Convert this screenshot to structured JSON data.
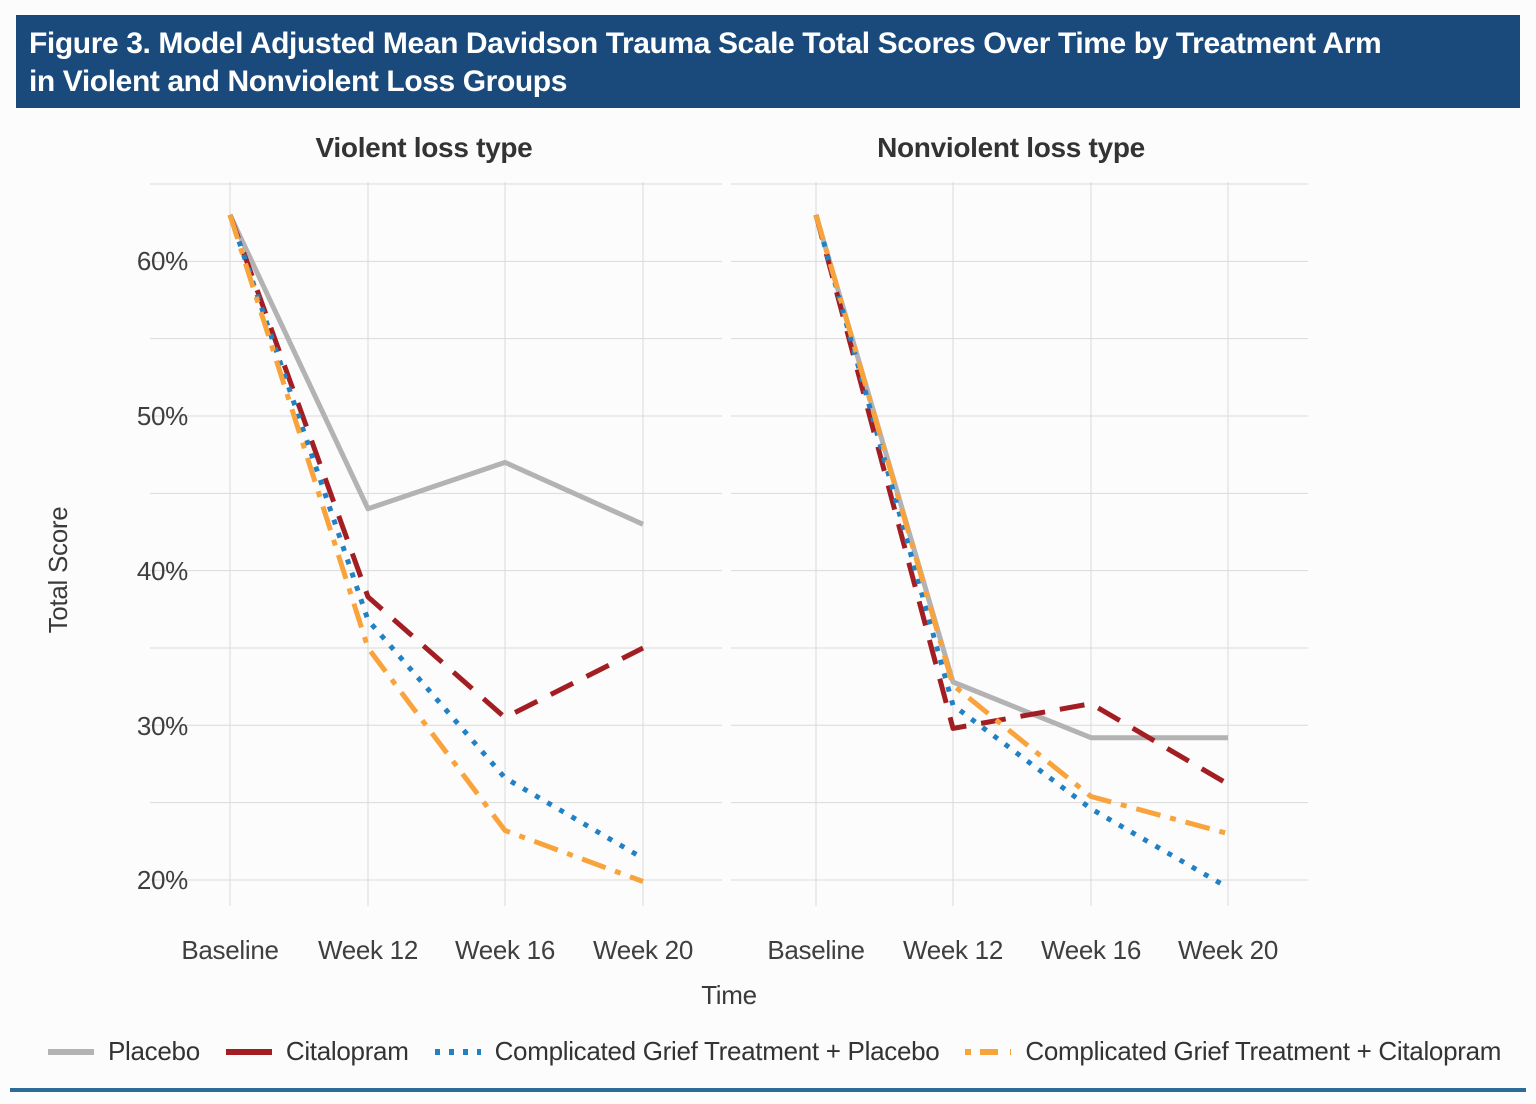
{
  "figure": {
    "title_line1": "Figure 3. Model Adjusted Mean Davidson Trauma Scale Total Scores Over Time by Treatment Arm",
    "title_line2": "in Violent and Nonviolent Loss Groups",
    "header_bg": "#1A4A7B",
    "rule_color": "#2D6B99",
    "gridline_color": "#DADADA"
  },
  "chart_data": {
    "type": "line",
    "xlabel": "Time",
    "ylabel": "Total Score",
    "categories": [
      "Baseline",
      "Week 12",
      "Week 16",
      "Week 20"
    ],
    "ytick_labels": [
      "60%",
      "50%",
      "40%",
      "30%",
      "20%"
    ],
    "ytick_values": [
      60,
      50,
      40,
      30,
      20
    ],
    "ylim": [
      18,
      65
    ],
    "gridline_step": 5,
    "grid": true,
    "legend_position": "bottom",
    "panels": [
      {
        "title": "Violent loss type",
        "series": [
          {
            "name": "Placebo",
            "values": [
              63,
              44,
              47,
              43
            ]
          },
          {
            "name": "Citalopram",
            "values": [
              63,
              38.3,
              30.5,
              35
            ]
          },
          {
            "name": "Complicated Grief Treatment + Placebo",
            "values": [
              63,
              36.8,
              26.6,
              21.4
            ]
          },
          {
            "name": "Complicated Grief Treatment + Citalopram",
            "values": [
              63,
              35,
              23.2,
              19.9
            ]
          }
        ]
      },
      {
        "title": "Nonviolent loss type",
        "series": [
          {
            "name": "Placebo",
            "values": [
              63,
              32.8,
              29.2,
              29.2
            ]
          },
          {
            "name": "Citalopram",
            "values": [
              63,
              29.8,
              31.4,
              26.2
            ]
          },
          {
            "name": "Complicated Grief Treatment + Placebo",
            "values": [
              63,
              31.3,
              24.6,
              19.5
            ]
          },
          {
            "name": "Complicated Grief Treatment + Citalopram",
            "values": [
              63,
              32.6,
              25.4,
              23
            ]
          }
        ]
      }
    ],
    "series_styles": [
      {
        "name": "Placebo",
        "color": "#B3B3B3",
        "dash": "solid"
      },
      {
        "name": "Citalopram",
        "color": "#A31E22",
        "dash": "dashed"
      },
      {
        "name": "Complicated Grief Treatment + Placebo",
        "color": "#2280C4",
        "dash": "dotted"
      },
      {
        "name": "Complicated Grief Treatment + Citalopram",
        "color": "#F8A33B",
        "dash": "dashdot"
      }
    ],
    "legend": [
      "Placebo",
      "Citalopram",
      "Complicated Grief Treatment + Placebo",
      "Complicated Grief Treatment + Citalopram"
    ]
  }
}
